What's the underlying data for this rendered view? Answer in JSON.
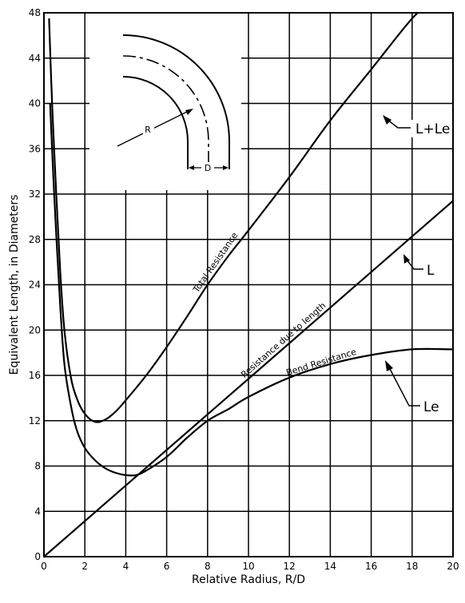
{
  "chart_data": {
    "type": "line",
    "title": "",
    "xlabel": "Relative Radius, R/D",
    "ylabel": "Equivalent Length, in Diameters",
    "xlim": [
      0,
      20
    ],
    "ylim": [
      0,
      48
    ],
    "grid": true,
    "x_ticks": [
      0,
      2,
      4,
      6,
      8,
      10,
      12,
      14,
      16,
      18,
      20
    ],
    "y_ticks": [
      0,
      4,
      8,
      12,
      16,
      20,
      24,
      28,
      32,
      36,
      40,
      44,
      48
    ],
    "series": [
      {
        "name": "Total Resistance",
        "tag": "L+Le",
        "x": [
          0.25,
          0.4,
          0.6,
          0.8,
          1.0,
          1.3,
          1.6,
          2.0,
          2.5,
          3.0,
          3.5,
          4.0,
          5.0,
          6.0,
          7.0,
          8.0,
          9.0,
          10.0,
          12.0,
          14.0,
          16.0,
          18.0,
          19.0
        ],
        "y": [
          47.5,
          40,
          32,
          25,
          20,
          16,
          14,
          12.6,
          11.9,
          12.1,
          12.8,
          13.8,
          16.0,
          18.5,
          21.2,
          24.0,
          26.5,
          28.8,
          33.5,
          38.5,
          43,
          47.5,
          49
        ]
      },
      {
        "name": "Bend Resistance",
        "tag": "Le",
        "x": [
          0.3,
          0.5,
          0.8,
          1.0,
          1.3,
          1.6,
          2.0,
          2.5,
          3.0,
          3.5,
          4.0,
          4.5,
          5.0,
          6.0,
          7.0,
          8.0,
          9.0,
          10.0,
          12.0,
          14.0,
          16.0,
          18.0,
          20.0
        ],
        "y": [
          40,
          32,
          22,
          17,
          13.5,
          11.2,
          9.6,
          8.5,
          7.8,
          7.4,
          7.2,
          7.2,
          7.6,
          8.8,
          10.5,
          12.0,
          13.0,
          14.1,
          15.8,
          17.0,
          17.8,
          18.3,
          18.3
        ]
      },
      {
        "name": "Resistance due to length",
        "tag": "L",
        "x": [
          0,
          20
        ],
        "y": [
          0,
          31.4
        ]
      }
    ],
    "inset": {
      "labels": [
        "R",
        "D"
      ]
    }
  }
}
